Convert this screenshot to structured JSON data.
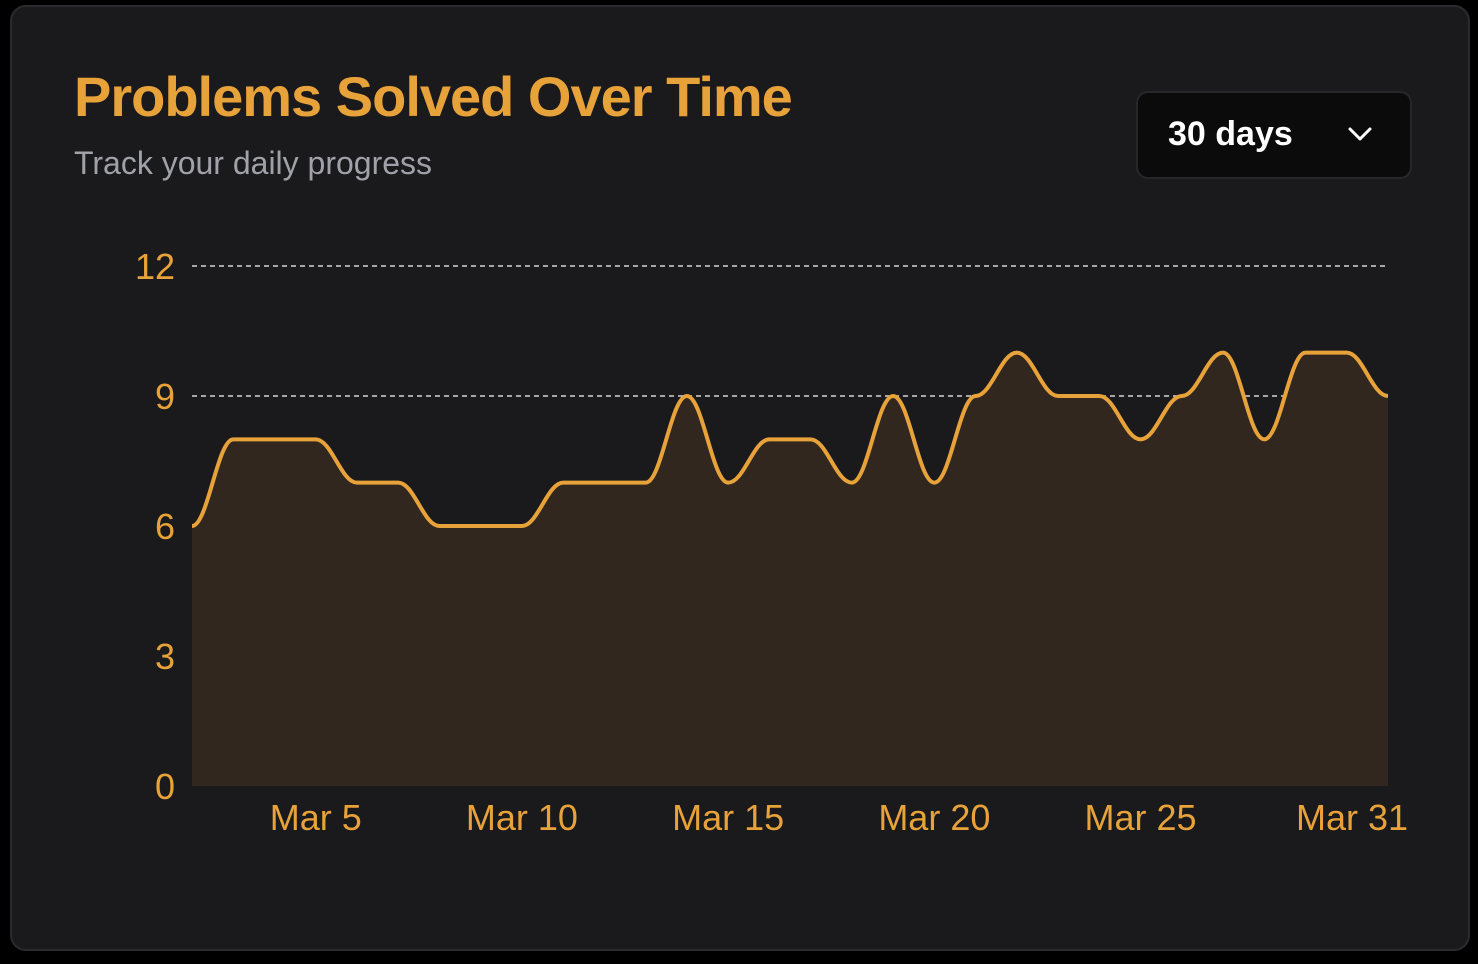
{
  "header": {
    "title": "Problems Solved Over Time",
    "subtitle": "Track your daily progress"
  },
  "range_select": {
    "value": "30 days",
    "icon": "chevron-down-icon"
  },
  "colors": {
    "accent": "#e8a23a",
    "area_fill": "#31271f",
    "card_bg": "#1a1a1c",
    "grid": "#d4d4d4",
    "subtitle": "#a1a1aa"
  },
  "chart_data": {
    "type": "area",
    "title": "Problems Solved Over Time",
    "x": [
      "Mar 2",
      "Mar 3",
      "Mar 4",
      "Mar 5",
      "Mar 6",
      "Mar 7",
      "Mar 8",
      "Mar 9",
      "Mar 10",
      "Mar 11",
      "Mar 12",
      "Mar 13",
      "Mar 14",
      "Mar 15",
      "Mar 16",
      "Mar 17",
      "Mar 18",
      "Mar 19",
      "Mar 20",
      "Mar 21",
      "Mar 22",
      "Mar 23",
      "Mar 24",
      "Mar 25",
      "Mar 26",
      "Mar 27",
      "Mar 28",
      "Mar 29",
      "Mar 30",
      "Mar 31"
    ],
    "values": [
      6,
      8,
      8,
      8,
      7,
      7,
      6,
      6,
      6,
      7,
      7,
      7,
      9,
      7,
      8,
      8,
      7,
      9,
      7,
      9,
      10,
      9,
      9,
      8,
      9,
      10,
      8,
      10,
      10,
      9
    ],
    "x_ticks": [
      "Mar 5",
      "Mar 10",
      "Mar 15",
      "Mar 20",
      "Mar 25",
      "Mar 31"
    ],
    "y_ticks": [
      0,
      3,
      6,
      9,
      12
    ],
    "ylim": [
      0,
      12
    ],
    "grid": true,
    "xlabel": "",
    "ylabel": ""
  }
}
